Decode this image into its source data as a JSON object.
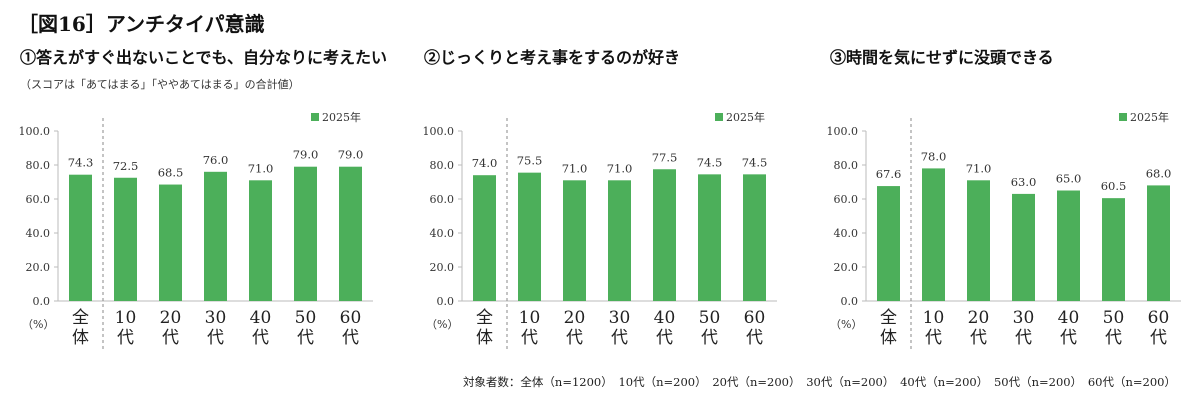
{
  "figure_title": "［図16］アンチタイパ意識",
  "note": "（スコアは「あてはまる」「ややあてはまる」の合計値）",
  "footnote": "対象者数：全体（n=1200）　10代（n=200）　20代（n=200）　30代（n=200）　40代（n=200）　50代（n=200）　60代（n=200）",
  "colors": {
    "bar": "#4caf5a",
    "axis": "#bbbbbb",
    "divider": "#888888"
  },
  "chart_data": [
    {
      "type": "bar",
      "title": "①答えがすぐ出ないことでも、自分なりに考えたい",
      "categories": [
        "全体",
        "10代",
        "20代",
        "30代",
        "40代",
        "50代",
        "60代"
      ],
      "series": [
        {
          "name": "2025年",
          "values": [
            74.3,
            72.5,
            68.5,
            76.0,
            71.0,
            79.0,
            79.0
          ]
        }
      ],
      "ylabel": "（%）",
      "ylim": [
        0,
        100
      ],
      "yticks": [
        "0.0",
        "20.0",
        "40.0",
        "60.0",
        "80.0",
        "100.0"
      ],
      "legend": "top-right",
      "grid": false
    },
    {
      "type": "bar",
      "title": "②じっくりと考え事をするのが好き",
      "categories": [
        "全体",
        "10代",
        "20代",
        "30代",
        "40代",
        "50代",
        "60代"
      ],
      "series": [
        {
          "name": "2025年",
          "values": [
            74.0,
            75.5,
            71.0,
            71.0,
            77.5,
            74.5,
            74.5
          ]
        }
      ],
      "ylabel": "（%）",
      "ylim": [
        0,
        100
      ],
      "yticks": [
        "0.0",
        "20.0",
        "40.0",
        "60.0",
        "80.0",
        "100.0"
      ],
      "legend": "top-right",
      "grid": false
    },
    {
      "type": "bar",
      "title": "③時間を気にせずに没頭できる",
      "categories": [
        "全体",
        "10代",
        "20代",
        "30代",
        "40代",
        "50代",
        "60代"
      ],
      "series": [
        {
          "name": "2025年",
          "values": [
            67.6,
            78.0,
            71.0,
            63.0,
            65.0,
            60.5,
            68.0
          ]
        }
      ],
      "ylabel": "（%）",
      "ylim": [
        0,
        100
      ],
      "yticks": [
        "0.0",
        "20.0",
        "40.0",
        "60.0",
        "80.0",
        "100.0"
      ],
      "legend": "top-right",
      "grid": false
    }
  ]
}
